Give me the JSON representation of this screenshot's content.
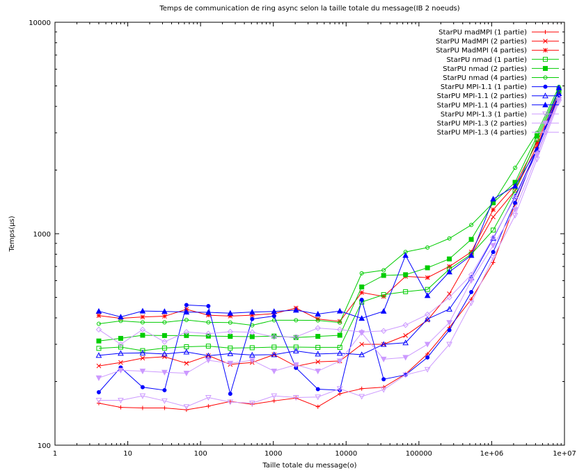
{
  "chart_data": {
    "type": "line",
    "title": "Temps de communication de ring async selon la taille totale du message(IB 2 noeuds)",
    "xlabel": "Taille totale du message(o)",
    "ylabel": "Temps(µs)",
    "x_scale": "log",
    "y_scale": "log",
    "xlim": [
      1,
      10000000
    ],
    "ylim": [
      100,
      10000
    ],
    "x_ticks": [
      1,
      10,
      100,
      1000,
      10000,
      100000,
      1000000,
      10000000
    ],
    "x_tick_labels": [
      "1",
      "10",
      "100",
      "1000",
      "10000",
      "100000",
      "1e+06",
      "1e+07"
    ],
    "y_ticks": [
      100,
      1000,
      10000
    ],
    "y_tick_labels": [
      "100",
      "1000",
      "10000"
    ],
    "grid": false,
    "legend_position": "top-right",
    "x": [
      4,
      8,
      16,
      32,
      64,
      128,
      256,
      512,
      1024,
      2048,
      4096,
      8192,
      16384,
      32768,
      65536,
      131072,
      262144,
      524288,
      1048576,
      2097152,
      4194304,
      8388608
    ],
    "series": [
      {
        "name": "StarPU madMPI (1 partie)",
        "color": "#ff0000",
        "marker": "plus",
        "values": [
          158,
          151,
          150,
          150,
          147,
          153,
          161,
          156,
          162,
          167,
          152,
          175,
          185,
          188,
          217,
          270,
          360,
          490,
          730,
          1380,
          2550,
          4400
        ]
      },
      {
        "name": "StarPU MadMPI (2 parties)",
        "color": "#ff0000",
        "marker": "cross",
        "values": [
          237,
          246,
          258,
          262,
          244,
          265,
          241,
          246,
          268,
          236,
          248,
          250,
          300,
          300,
          330,
          390,
          520,
          790,
          1200,
          1600,
          2600,
          4500
        ]
      },
      {
        "name": "StarPU MadMPI (4 parties)",
        "color": "#ff0000",
        "marker": "star",
        "values": [
          410,
          398,
          404,
          407,
          439,
          412,
          408,
          412,
          419,
          445,
          395,
          385,
          527,
          505,
          628,
          620,
          700,
          820,
          1300,
          1700,
          2700,
          4600
        ]
      },
      {
        "name": "StarPU nmad (1 partie)",
        "color": "#00cc00",
        "marker": "square-open",
        "values": [
          287,
          291,
          280,
          288,
          292,
          294,
          288,
          289,
          291,
          291,
          290,
          290,
          475,
          515,
          532,
          545,
          680,
          800,
          1040,
          1600,
          2800,
          4700
        ]
      },
      {
        "name": "StarPU nmad (2 parties)",
        "color": "#00cc00",
        "marker": "square-filled",
        "values": [
          311,
          320,
          331,
          330,
          330,
          328,
          327,
          326,
          328,
          323,
          327,
          331,
          560,
          635,
          640,
          690,
          760,
          940,
          1400,
          1750,
          2900,
          4800
        ]
      },
      {
        "name": "StarPU nmad (4 parties)",
        "color": "#00cc00",
        "marker": "circle-open",
        "values": [
          375,
          387,
          381,
          381,
          391,
          381,
          380,
          369,
          390,
          390,
          389,
          380,
          650,
          672,
          820,
          860,
          950,
          1100,
          1400,
          2050,
          3000,
          4950
        ]
      },
      {
        "name": "StarPU MPI-1.1 (1 partie)",
        "color": "#0000ff",
        "marker": "circle-filled",
        "values": [
          178,
          233,
          188,
          182,
          460,
          455,
          175,
          395,
          408,
          232,
          184,
          182,
          487,
          205,
          215,
          260,
          350,
          530,
          820,
          1400,
          2500,
          4500
        ]
      },
      {
        "name": "StarPU MPI-1.1 (2 parties)",
        "color": "#0000ff",
        "marker": "triangle-open",
        "values": [
          266,
          272,
          273,
          270,
          276,
          265,
          271,
          267,
          268,
          279,
          270,
          272,
          268,
          300,
          305,
          395,
          440,
          620,
          950,
          1500,
          2500,
          4600
        ]
      },
      {
        "name": "StarPU MPI-1.1 (4 parties)",
        "color": "#0000ff",
        "marker": "triangle-filled",
        "values": [
          430,
          404,
          431,
          429,
          426,
          425,
          421,
          426,
          429,
          435,
          417,
          431,
          398,
          430,
          790,
          510,
          660,
          790,
          1460,
          1680,
          2500,
          4900
        ]
      },
      {
        "name": "StarPU MPI-1.3 (1 partie)",
        "color": "#cc99ff",
        "marker": "triangle-down-open",
        "values": [
          163,
          163,
          171,
          162,
          152,
          168,
          160,
          158,
          171,
          168,
          169,
          185,
          170,
          183,
          215,
          228,
          300,
          470,
          770,
          1220,
          2250,
          4200
        ]
      },
      {
        "name": "StarPU MPI-1.3 (2 parties)",
        "color": "#cc99ff",
        "marker": "triangle-down-filled",
        "values": [
          208,
          226,
          224,
          221,
          219,
          252,
          244,
          252,
          224,
          240,
          224,
          250,
          340,
          255,
          260,
          300,
          380,
          600,
          880,
          1300,
          2350,
          4300
        ]
      },
      {
        "name": "StarPU MPI-1.3 (4 parties)",
        "color": "#cc99ff",
        "marker": "diamond-open",
        "values": [
          352,
          300,
          352,
          308,
          343,
          337,
          344,
          342,
          325,
          325,
          358,
          352,
          343,
          347,
          370,
          415,
          500,
          640,
          960,
          1480,
          2400,
          4400
        ]
      }
    ]
  }
}
